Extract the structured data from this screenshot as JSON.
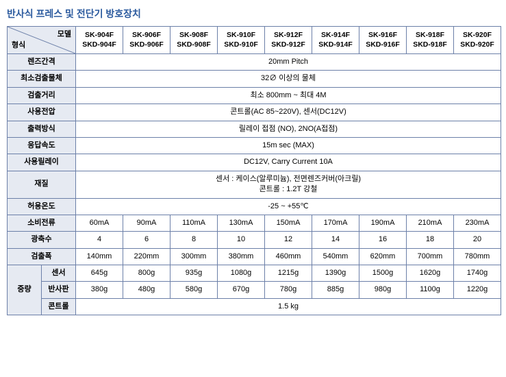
{
  "title": "반사식 프레스 및 전단기 방호장치",
  "title_color": "#2b5a9e",
  "header_bg": "#e6eaf2",
  "border_color": "#6b7fa8",
  "corner": {
    "top": "모델",
    "bottom": "형식"
  },
  "models": [
    {
      "top": "SK-904F",
      "bottom": "SKD-904F"
    },
    {
      "top": "SK-906F",
      "bottom": "SKD-906F"
    },
    {
      "top": "SK-908F",
      "bottom": "SKD-908F"
    },
    {
      "top": "SK-910F",
      "bottom": "SKD-910F"
    },
    {
      "top": "SK-912F",
      "bottom": "SKD-912F"
    },
    {
      "top": "SK-914F",
      "bottom": "SKD-914F"
    },
    {
      "top": "SK-916F",
      "bottom": "SKD-916F"
    },
    {
      "top": "SK-918F",
      "bottom": "SKD-918F"
    },
    {
      "top": "SK-920F",
      "bottom": "SKD-920F"
    }
  ],
  "spanrows": [
    {
      "label": "렌즈간격",
      "value": "20mm Pitch"
    },
    {
      "label": "최소검출물체",
      "value": "32∅ 이상의 물체"
    },
    {
      "label": "검출거리",
      "value": "최소 800mm ~ 최대 4M"
    },
    {
      "label": "사용전압",
      "value": "콘트롤(AC 85~220V), 센서(DC12V)"
    },
    {
      "label": "출력방식",
      "value": "릴레이 접점 (NO), 2NO(A접점)"
    },
    {
      "label": "응답속도",
      "value": "15m sec (MAX)"
    },
    {
      "label": "사용릴레이",
      "value": "DC12V, Carry Current 10A"
    },
    {
      "label": "재질",
      "value": "센서 : 케이스(알루미늄), 전면렌즈커버(아크릴)\n콘트롤 : 1.2T 강철"
    },
    {
      "label": "허용온도",
      "value": "-25 ~ +55℃"
    }
  ],
  "datarows": [
    {
      "label": "소비전류",
      "values": [
        "60mA",
        "90mA",
        "110mA",
        "130mA",
        "150mA",
        "170mA",
        "190mA",
        "210mA",
        "230mA"
      ]
    },
    {
      "label": "광축수",
      "values": [
        "4",
        "6",
        "8",
        "10",
        "12",
        "14",
        "16",
        "18",
        "20"
      ]
    },
    {
      "label": "검출폭",
      "values": [
        "140mm",
        "220mm",
        "300mm",
        "380mm",
        "460mm",
        "540mm",
        "620mm",
        "700mm",
        "780mm"
      ]
    }
  ],
  "weight_label": "중량",
  "weight_rows": [
    {
      "label": "센서",
      "values": [
        "645g",
        "800g",
        "935g",
        "1080g",
        "1215g",
        "1390g",
        "1500g",
        "1620g",
        "1740g"
      ]
    },
    {
      "label": "반사판",
      "values": [
        "380g",
        "480g",
        "580g",
        "670g",
        "780g",
        "885g",
        "980g",
        "1100g",
        "1220g"
      ]
    }
  ],
  "weight_span": {
    "label": "콘트롤",
    "value": "1.5 kg"
  }
}
